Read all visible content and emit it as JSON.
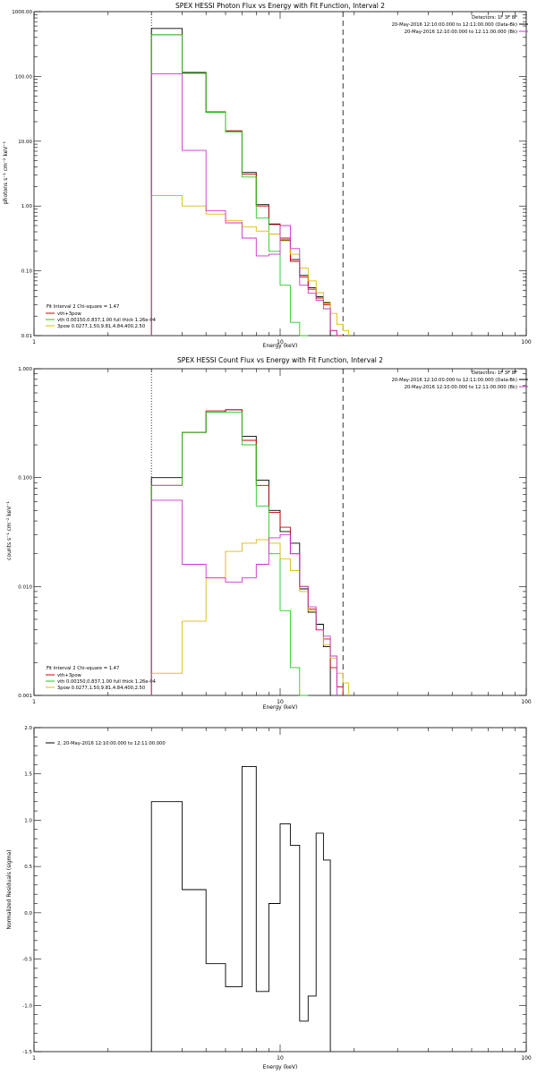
{
  "colors": {
    "axis": "#000000",
    "total": "#000000",
    "fit_sum": "#cc0000",
    "vth": "#22cc22",
    "3pow": "#ddbb00",
    "bk": "#cc33cc"
  },
  "chart_data": [
    {
      "type": "line",
      "title": "SPEX HESSI Photon Flux vs Energy with Fit Function, Interval 2",
      "xlabel": "Energy (keV)",
      "ylabel": "photons s⁻¹ cm⁻² keV⁻¹",
      "xscale": "log",
      "yscale": "log",
      "xlim": [
        1,
        100
      ],
      "ylim": [
        0.01,
        1000
      ],
      "xticks": [
        {
          "v": 1,
          "label": "1"
        },
        {
          "v": 10,
          "label": "10"
        },
        {
          "v": 100,
          "label": "100"
        }
      ],
      "yticks": [
        {
          "v": 0.01,
          "label": "0.01"
        },
        {
          "v": 0.1,
          "label": "0.10"
        },
        {
          "v": 1,
          "label": "1.00"
        },
        {
          "v": 10,
          "label": "10.00"
        },
        {
          "v": 100,
          "label": "100.00"
        },
        {
          "v": 1000,
          "label": "1000.00"
        }
      ],
      "vlines": [
        {
          "x": 3,
          "style": "dotted"
        },
        {
          "x": 18,
          "style": "dashed"
        }
      ],
      "edges": [
        3,
        4,
        5,
        6,
        7,
        8,
        9,
        10,
        11,
        12,
        13,
        14,
        15,
        16,
        17,
        18,
        19,
        20,
        21
      ],
      "header": [
        "Detectors: 1F 3F 8F",
        "20-May-2016 12:10:00.000 to 12:11:00.000 (Data-Bk)",
        "20-May-2016 12:10:00.000 to 12:11:00.000 (Bk)"
      ],
      "header_colors": [
        "none",
        "total",
        "bk"
      ],
      "legend_title": "Fit Interval 2  Chi-square = 1.47",
      "legend": [
        {
          "label": "vth+3pow",
          "color": "fit_sum"
        },
        {
          "label": "vth 0.00150,0.837,1.00  full thick 1.26e-04",
          "color": "vth"
        },
        {
          "label": "3pow 0.0277,1.50,9.81,4.84,400,2.50",
          "color": "3pow"
        }
      ],
      "series": [
        {
          "color": "total",
          "values": [
            550,
            115,
            28,
            14,
            3.3,
            1.05,
            0.52,
            0.3,
            0.15,
            0.085,
            0.055,
            0.04,
            0.032,
            null,
            null,
            null,
            null,
            null
          ]
        },
        {
          "color": "fit_sum",
          "values": [
            440,
            112,
            28.5,
            14.5,
            3.1,
            1.0,
            0.53,
            0.32,
            0.14,
            0.08,
            0.052,
            0.038,
            0.03,
            0.012,
            0.01,
            null,
            null,
            null
          ]
        },
        {
          "color": "vth",
          "values": [
            440,
            112,
            28,
            14,
            2.8,
            0.65,
            0.2,
            0.06,
            0.016,
            0.01,
            null,
            null,
            null,
            null,
            null,
            null,
            null,
            null
          ]
        },
        {
          "color": "3pow",
          "values": [
            1.45,
            1.0,
            0.75,
            0.6,
            0.48,
            0.41,
            0.37,
            0.29,
            0.18,
            0.11,
            0.07,
            0.046,
            0.033,
            0.022,
            0.015,
            0.012,
            null,
            null
          ]
        },
        {
          "color": "bk",
          "values": [
            110,
            7.2,
            0.85,
            0.55,
            0.32,
            0.17,
            0.18,
            0.5,
            0.22,
            0.06,
            0.045,
            0.035,
            0.026,
            0.012,
            null,
            null,
            null,
            null
          ]
        }
      ]
    },
    {
      "type": "line",
      "title": "SPEX HESSI Count Flux vs Energy with Fit Function, Interval 2",
      "xlabel": "Energy (keV)",
      "ylabel": "counts s⁻¹ cm⁻² keV⁻¹",
      "xscale": "log",
      "yscale": "log",
      "xlim": [
        1,
        100
      ],
      "ylim": [
        0.001,
        1
      ],
      "xticks": [
        {
          "v": 1,
          "label": "1"
        },
        {
          "v": 10,
          "label": "10"
        },
        {
          "v": 100,
          "label": "100"
        }
      ],
      "yticks": [
        {
          "v": 0.001,
          "label": "0.001"
        },
        {
          "v": 0.01,
          "label": "0.010"
        },
        {
          "v": 0.1,
          "label": "0.100"
        },
        {
          "v": 1,
          "label": "1.000"
        }
      ],
      "vlines": [
        {
          "x": 3,
          "style": "dotted"
        },
        {
          "x": 18,
          "style": "dashed"
        }
      ],
      "edges": [
        3,
        4,
        5,
        6,
        7,
        8,
        9,
        10,
        11,
        12,
        13,
        14,
        15,
        16,
        17,
        18,
        19,
        20,
        21
      ],
      "header": [
        "Detectors: 1F 3F 8F",
        "20-May-2016 12:10:00.000 to 12:11:00.000 (Data-Bk)",
        "20-May-2016 12:10:00.000 to 12:11:00.000 (Bk)"
      ],
      "header_colors": [
        "none",
        "total",
        "bk"
      ],
      "legend_title": "Fit Interval 2  Chi-square = 1.47",
      "legend": [
        {
          "label": "vth+3pow",
          "color": "fit_sum"
        },
        {
          "label": "vth 0.00150,0.837,1.00  full thick 1.26e-04",
          "color": "vth"
        },
        {
          "label": "3pow 0.0277,1.50,9.81,4.84,400,2.50",
          "color": "3pow"
        }
      ],
      "series": [
        {
          "color": "total",
          "values": [
            0.1,
            0.26,
            0.4,
            0.42,
            0.24,
            0.095,
            0.05,
            0.032,
            0.025,
            0.0095,
            0.0058,
            0.0045,
            0.0028,
            null,
            null,
            null,
            null,
            null
          ]
        },
        {
          "color": "fit_sum",
          "values": [
            0.085,
            0.26,
            0.41,
            0.42,
            0.22,
            0.085,
            0.048,
            0.035,
            0.02,
            0.01,
            0.0062,
            0.004,
            0.0033,
            0.0018,
            0.0012,
            null,
            null,
            null
          ]
        },
        {
          "color": "vth",
          "values": [
            0.085,
            0.26,
            0.4,
            0.4,
            0.2,
            0.055,
            0.02,
            0.006,
            0.0018,
            0.001,
            null,
            null,
            null,
            null,
            null,
            null,
            null,
            null
          ]
        },
        {
          "color": "3pow",
          "values": [
            0.0016,
            0.0048,
            0.012,
            0.021,
            0.025,
            0.027,
            0.025,
            0.018,
            0.014,
            0.009,
            0.006,
            0.004,
            0.0029,
            0.0022,
            0.0016,
            0.0013,
            null,
            null
          ]
        },
        {
          "color": "bk",
          "values": [
            0.062,
            0.016,
            0.012,
            0.011,
            0.012,
            0.016,
            0.028,
            0.03,
            0.02,
            0.01,
            0.0065,
            0.004,
            0.0035,
            0.0023,
            null,
            null,
            null,
            null
          ]
        }
      ]
    },
    {
      "type": "line",
      "title": "",
      "xlabel": "Energy (keV)",
      "ylabel": "Normalized Residuals (sigma)",
      "xscale": "log",
      "yscale": "linear",
      "xlim": [
        1,
        100
      ],
      "ylim": [
        -1.5,
        2.0
      ],
      "xticks": [
        {
          "v": 1,
          "label": "1"
        },
        {
          "v": 10,
          "label": "10"
        },
        {
          "v": 100,
          "label": "100"
        }
      ],
      "yticks": [
        {
          "v": -1.5,
          "label": "-1.5"
        },
        {
          "v": -1.0,
          "label": "-1.0"
        },
        {
          "v": -0.5,
          "label": "-0.5"
        },
        {
          "v": 0.0,
          "label": "0.0"
        },
        {
          "v": 0.5,
          "label": "0.5"
        },
        {
          "v": 1.0,
          "label": "1.0"
        },
        {
          "v": 1.5,
          "label": "1.5"
        },
        {
          "v": 2.0,
          "label": "2.0"
        }
      ],
      "vlines": [],
      "edges": [
        3,
        4,
        5,
        6,
        7,
        8,
        9,
        10,
        11,
        12,
        13,
        14,
        15,
        16,
        17,
        18
      ],
      "header": [],
      "header_colors": [],
      "legend_title": "",
      "legend": [
        {
          "label": "2, 20-May-2016 12:10:00.000 to 12:11:00.000",
          "color": "total"
        }
      ],
      "series": [
        {
          "color": "total",
          "values": [
            1.2,
            0.25,
            -0.55,
            -0.8,
            1.58,
            -0.85,
            0.1,
            0.96,
            0.73,
            -1.17,
            -0.9,
            0.86,
            0.57,
            null,
            null,
            null,
            null
          ]
        }
      ]
    }
  ]
}
